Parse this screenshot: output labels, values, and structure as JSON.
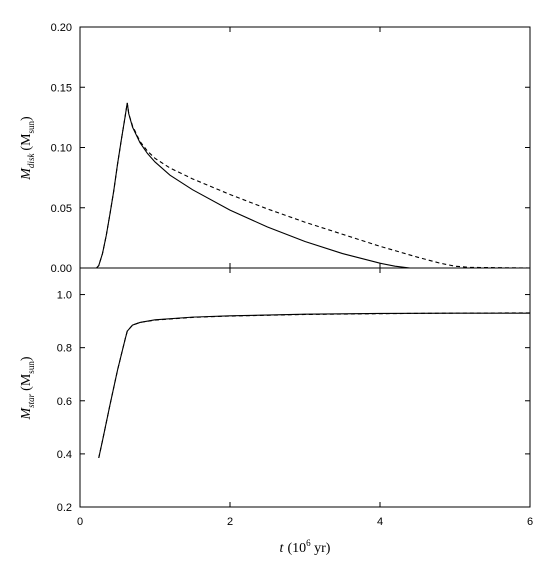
{
  "chart_data": [
    {
      "type": "line",
      "title": "",
      "xlabel": "",
      "ylabel": {
        "main": "M",
        "sub": "disk",
        "unit": "(M",
        "unit_sub": "sun",
        "close": ")"
      },
      "xlim": [
        0,
        6
      ],
      "ylim": [
        0,
        0.2
      ],
      "xticks": [
        0,
        2,
        4,
        6
      ],
      "yticks": [
        0.0,
        0.05,
        0.1,
        0.15,
        0.2
      ],
      "ytick_labels": [
        "0.00",
        "0.05",
        "0.10",
        "0.15",
        "0.20"
      ],
      "grid": false,
      "series": [
        {
          "style": "solid",
          "x": [
            0.22,
            0.25,
            0.3,
            0.35,
            0.4,
            0.45,
            0.5,
            0.55,
            0.6,
            0.63,
            0.65,
            0.7,
            0.8,
            0.9,
            1.0,
            1.2,
            1.5,
            2.0,
            2.5,
            3.0,
            3.5,
            4.0,
            4.2,
            4.4,
            5.0,
            6.0
          ],
          "y": [
            0.0,
            0.002,
            0.012,
            0.027,
            0.045,
            0.064,
            0.086,
            0.106,
            0.125,
            0.137,
            0.128,
            0.117,
            0.104,
            0.095,
            0.088,
            0.077,
            0.065,
            0.048,
            0.034,
            0.022,
            0.012,
            0.004,
            0.0015,
            0.0,
            0.0,
            0.0
          ]
        },
        {
          "style": "dashed",
          "x": [
            0.22,
            0.25,
            0.3,
            0.35,
            0.4,
            0.45,
            0.5,
            0.55,
            0.6,
            0.63,
            0.65,
            0.7,
            0.8,
            0.9,
            1.0,
            1.2,
            1.5,
            2.0,
            2.5,
            3.0,
            3.5,
            4.0,
            4.5,
            4.8,
            5.0,
            5.2,
            6.0
          ],
          "y": [
            0.0,
            0.002,
            0.012,
            0.027,
            0.045,
            0.064,
            0.086,
            0.106,
            0.125,
            0.137,
            0.128,
            0.118,
            0.105,
            0.097,
            0.091,
            0.083,
            0.074,
            0.061,
            0.049,
            0.038,
            0.028,
            0.018,
            0.009,
            0.004,
            0.0015,
            0.0005,
            0.0
          ]
        }
      ]
    },
    {
      "type": "line",
      "title": "",
      "xlabel": {
        "main": "t",
        "unit": "(10",
        "sup": "6",
        "rest": " yr)"
      },
      "ylabel": {
        "main": "M",
        "sub": "star",
        "unit": "(M",
        "unit_sub": "sun",
        "close": ")"
      },
      "xlim": [
        0,
        6
      ],
      "ylim": [
        0.2,
        1.1
      ],
      "xticks": [
        0,
        2,
        4,
        6
      ],
      "yticks": [
        0.2,
        0.4,
        0.6,
        0.8,
        1.0
      ],
      "ytick_labels": [
        "0.2",
        "0.4",
        "0.6",
        "0.8",
        "1.0"
      ],
      "grid": false,
      "series": [
        {
          "style": "solid",
          "x": [
            0.25,
            0.3,
            0.4,
            0.5,
            0.6,
            0.63,
            0.7,
            0.8,
            1.0,
            1.5,
            2.0,
            3.0,
            4.0,
            5.0,
            6.0
          ],
          "y": [
            0.385,
            0.45,
            0.585,
            0.715,
            0.83,
            0.862,
            0.885,
            0.895,
            0.905,
            0.915,
            0.92,
            0.926,
            0.929,
            0.93,
            0.93
          ]
        },
        {
          "style": "dashed",
          "x": [
            0.25,
            0.3,
            0.4,
            0.5,
            0.6,
            0.63,
            0.7,
            0.8,
            1.0,
            1.5,
            2.0,
            3.0,
            4.0,
            5.0,
            6.0
          ],
          "y": [
            0.385,
            0.45,
            0.585,
            0.715,
            0.83,
            0.862,
            0.885,
            0.895,
            0.904,
            0.914,
            0.919,
            0.925,
            0.928,
            0.93,
            0.931
          ]
        }
      ]
    }
  ]
}
